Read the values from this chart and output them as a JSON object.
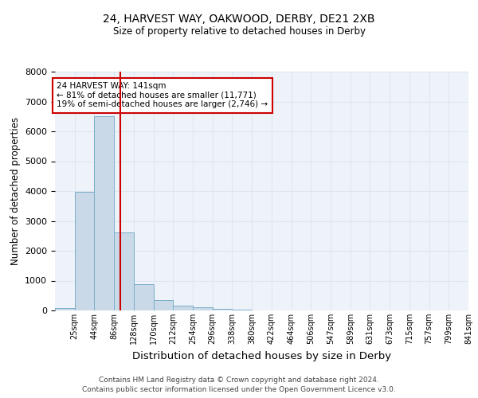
{
  "title1": "24, HARVEST WAY, OAKWOOD, DERBY, DE21 2XB",
  "title2": "Size of property relative to detached houses in Derby",
  "xlabel": "Distribution of detached houses by size in Derby",
  "ylabel": "Number of detached properties",
  "bin_labels": [
    "25sqm",
    "44sqm",
    "86sqm",
    "128sqm",
    "170sqm",
    "212sqm",
    "254sqm",
    "296sqm",
    "338sqm",
    "380sqm",
    "422sqm",
    "464sqm",
    "506sqm",
    "547sqm",
    "589sqm",
    "631sqm",
    "673sqm",
    "715sqm",
    "757sqm",
    "799sqm",
    "841sqm"
  ],
  "bar_heights": [
    75,
    3980,
    6520,
    2620,
    880,
    355,
    155,
    105,
    52,
    28,
    10,
    8,
    5,
    3,
    2,
    1,
    1,
    0,
    0,
    0,
    0
  ],
  "bar_color": "#c9d9e8",
  "bar_edge_color": "#7aaec8",
  "property_size_bin": 3.5,
  "vline_color": "#cc0000",
  "annotation_text": "24 HARVEST WAY: 141sqm\n← 81% of detached houses are smaller (11,771)\n19% of semi-detached houses are larger (2,746) →",
  "annotation_box_color": "#cc0000",
  "ylim": [
    0,
    8000
  ],
  "yticks": [
    0,
    1000,
    2000,
    3000,
    4000,
    5000,
    6000,
    7000,
    8000
  ],
  "footer1": "Contains HM Land Registry data © Crown copyright and database right 2024.",
  "footer2": "Contains public sector information licensed under the Open Government Licence v3.0.",
  "grid_color": "#dce6f1",
  "background_color": "#eef3f9",
  "fig_width": 6.0,
  "fig_height": 5.0,
  "fig_dpi": 100
}
